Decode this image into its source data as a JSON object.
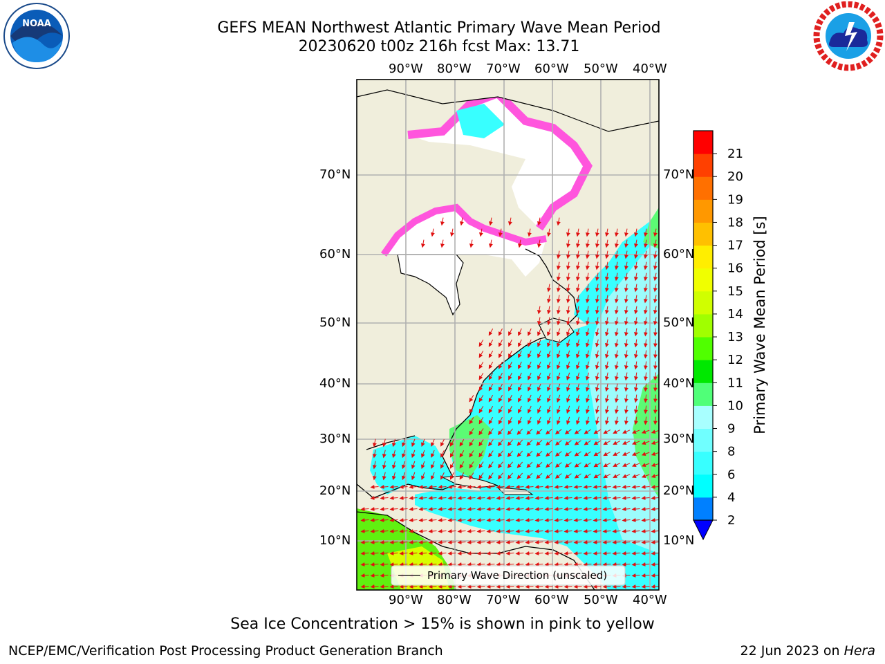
{
  "header": {
    "title_line1": "GEFS MEAN Northwest Atlantic Primary Wave Mean Period",
    "title_line2": "20230620 t00z 216h fcst   Max: 13.71"
  },
  "logos": {
    "noaa": {
      "text": "NOAA",
      "ring_text": "NATIONAL OCEANIC AND ATMOSPHERIC ADMINISTRATION · U.S. DEPARTMENT OF COMMERCE"
    },
    "nws": {
      "ring_text": "NATIONAL WEATHER SERVICE"
    }
  },
  "map": {
    "lon_labels": [
      "90°W",
      "80°W",
      "70°W",
      "60°W",
      "50°W",
      "40°W"
    ],
    "lat_labels": [
      "70°N",
      "60°N",
      "50°N",
      "40°N",
      "30°N",
      "20°N",
      "10°N"
    ],
    "legend_label": "Primary Wave Direction (unscaled)",
    "colors": {
      "land": "#f0eedc",
      "ocean_short": "#38ffff",
      "ocean_med": "#9cfcfc",
      "ocean_long": "#5cfb74",
      "ice": "#ff55dd",
      "arrow": "#e01010"
    }
  },
  "colorbar": {
    "label": "Primary Wave Mean Period [s]",
    "ticks": [
      "2",
      "4",
      "6",
      "8",
      "9",
      "10",
      "11",
      "12",
      "13",
      "14",
      "15",
      "16",
      "17",
      "18",
      "19",
      "20",
      "21"
    ],
    "colors": [
      "#0080ff",
      "#00ffff",
      "#38ffff",
      "#70ffff",
      "#a8ffff",
      "#50ff78",
      "#00e800",
      "#50ff00",
      "#a0ff00",
      "#d0ff00",
      "#f0ff00",
      "#ffee00",
      "#ffc000",
      "#ff9800",
      "#ff7000",
      "#ff4000",
      "#ff0000"
    ],
    "under_color": "#0000ff"
  },
  "notes": {
    "sea_ice": "Sea Ice Concentration > 15% is shown in pink to yellow"
  },
  "footer": {
    "left": "NCEP/EMC/Verification Post Processing Product Generation Branch",
    "right_date": "22 Jun 2023 on",
    "right_host": "Hera"
  }
}
